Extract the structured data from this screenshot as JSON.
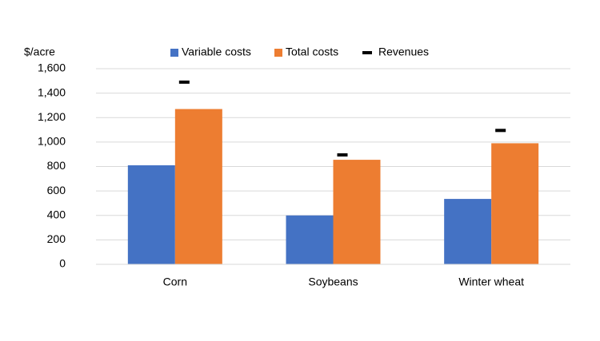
{
  "chart_data": {
    "type": "bar",
    "y_label": "$/acre",
    "categories": [
      "Corn",
      "Soybeans",
      "Winter wheat"
    ],
    "series": [
      {
        "name": "Variable costs",
        "color": "#4472c4",
        "values": [
          810,
          400,
          535
        ]
      },
      {
        "name": "Total costs",
        "color": "#ed7d31",
        "values": [
          1270,
          855,
          990
        ]
      },
      {
        "name": "Revenues",
        "color": "#000000",
        "style": "dash",
        "values": [
          1490,
          895,
          1095
        ]
      }
    ],
    "ylim": [
      0,
      1600
    ],
    "yticks": [
      0,
      200,
      400,
      600,
      800,
      {
        "value": 1000,
        "label": "1,000"
      },
      {
        "value": 1200,
        "label": "1,200"
      },
      {
        "value": 1400,
        "label": "1,400"
      },
      {
        "value": 1600,
        "label": "1,600"
      }
    ],
    "grid": true,
    "legend": "top"
  }
}
